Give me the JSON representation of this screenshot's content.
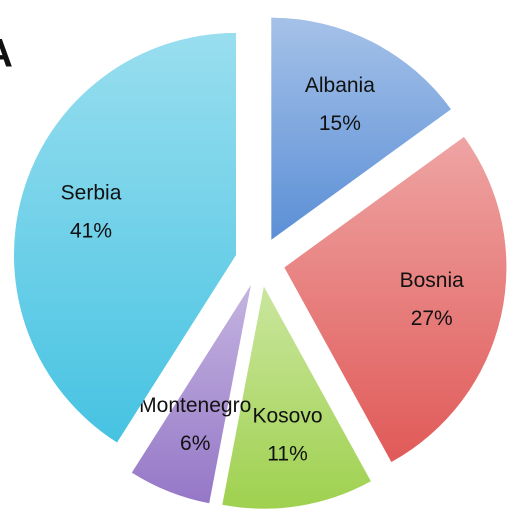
{
  "panel_label": "A",
  "chart_data": {
    "type": "pie",
    "categories": [
      "Albania",
      "Bosnia",
      "Kosovo",
      "Montenegro",
      "Serbia"
    ],
    "values": [
      15,
      27,
      11,
      6,
      41
    ],
    "value_labels": [
      "15%",
      "27%",
      "11%",
      "6%",
      "41%"
    ],
    "colors": [
      "#5b8fd6",
      "#e05a58",
      "#9fd14f",
      "#9577c7",
      "#46c3e2"
    ],
    "exploded": true
  }
}
